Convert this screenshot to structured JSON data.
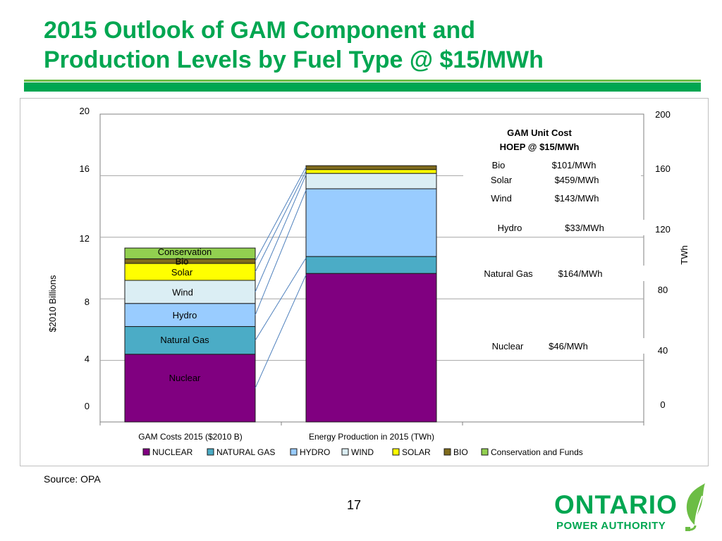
{
  "slide": {
    "title_line1": "2015 Outlook of GAM Component and",
    "title_line2": "Production Levels by Fuel Type @ $15/MWh",
    "source": "Source: OPA",
    "page_number": "17"
  },
  "logo": {
    "word": "ONTARIO",
    "sub": "POWER AUTHORITY",
    "icon": "leaf-plug-icon"
  },
  "colors": {
    "title_green": "#00a651",
    "NUCLEAR": "#800080",
    "NATURAL GAS": "#4bacc6",
    "HYDRO": "#99ccff",
    "WIND": "#dbeef4",
    "SOLAR": "#ffff00",
    "BIO": "#7f6b1c",
    "Conservation and Funds": "#92d050"
  },
  "chart_data": {
    "type": "bar",
    "stacked": true,
    "categories": [
      "GAM Costs 2015 ($2010 B)",
      "Energy Production in 2015 (TWh)"
    ],
    "y_left": {
      "label": "$2010  Billions",
      "ticks": [
        "20",
        "16",
        "12",
        "8",
        "4",
        "0"
      ],
      "range": [
        0,
        20
      ]
    },
    "y_right": {
      "label": "TWh",
      "ticks": [
        "200",
        "160",
        "120",
        "80",
        "40",
        "0"
      ],
      "range": [
        0,
        200
      ]
    },
    "series": [
      {
        "name": "NUCLEAR",
        "values": [
          4.4,
          96.5
        ]
      },
      {
        "name": "NATURAL GAS",
        "values": [
          1.8,
          11
        ]
      },
      {
        "name": "HYDRO",
        "values": [
          1.5,
          44
        ]
      },
      {
        "name": "WIND",
        "values": [
          1.5,
          10
        ]
      },
      {
        "name": "SOLAR",
        "values": [
          1.1,
          2.5
        ]
      },
      {
        "name": "BIO",
        "values": [
          0.3,
          2.5
        ]
      },
      {
        "name": "Conservation and Funds",
        "values": [
          0.7,
          0
        ]
      }
    ],
    "bar_labels": [
      "Nuclear",
      "Natural Gas",
      "Hydro",
      "Wind",
      "Solar",
      "Bio",
      "Conservation"
    ],
    "legend": {
      "position": "bottom",
      "entries": [
        "NUCLEAR",
        "NATURAL GAS",
        "HYDRO",
        "WIND",
        "SOLAR",
        "BIO",
        "Conservation and Funds"
      ]
    },
    "grid": true,
    "annotations": {
      "header_line1": "GAM Unit Cost",
      "header_line2": "HOEP @ $15/MWh",
      "costs": [
        {
          "fuel": "Bio",
          "cost": "$101/MWh"
        },
        {
          "fuel": "Solar",
          "cost": "$459/MWh"
        },
        {
          "fuel": "Wind",
          "cost": "$143/MWh"
        },
        {
          "fuel": "Hydro",
          "cost": "$33/MWh"
        },
        {
          "fuel": "Natural Gas",
          "cost": "$164/MWh"
        },
        {
          "fuel": "Nuclear",
          "cost": "$46/MWh"
        }
      ]
    }
  }
}
